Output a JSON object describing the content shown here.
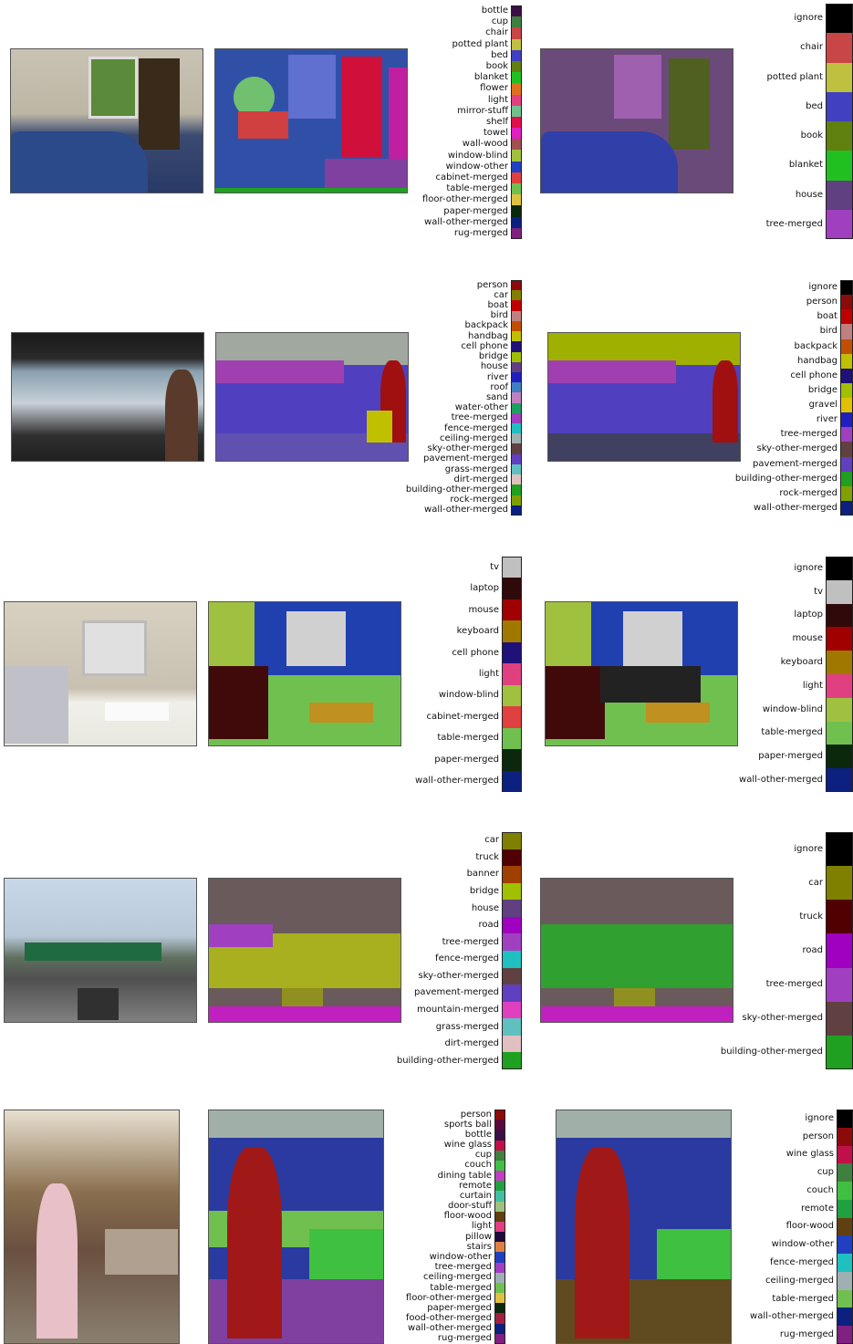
{
  "rows": [
    {
      "legend_mid": [
        {
          "label": "bottle",
          "color": "#3b0f45"
        },
        {
          "label": "cup",
          "color": "#3f7f3f"
        },
        {
          "label": "chair",
          "color": "#c84646"
        },
        {
          "label": "potted plant",
          "color": "#c0c040"
        },
        {
          "label": "bed",
          "color": "#4040c0"
        },
        {
          "label": "book",
          "color": "#608010"
        },
        {
          "label": "blanket",
          "color": "#20c020"
        },
        {
          "label": "flower",
          "color": "#e07020"
        },
        {
          "label": "light",
          "color": "#e04080"
        },
        {
          "label": "mirror-stuff",
          "color": "#70c090"
        },
        {
          "label": "shelf",
          "color": "#e0104a"
        },
        {
          "label": "towel",
          "color": "#e020c0"
        },
        {
          "label": "wall-wood",
          "color": "#a05050"
        },
        {
          "label": "window-blind",
          "color": "#a0c040"
        },
        {
          "label": "window-other",
          "color": "#2040c0"
        },
        {
          "label": "cabinet-merged",
          "color": "#e04040"
        },
        {
          "label": "table-merged",
          "color": "#70c050"
        },
        {
          "label": "floor-other-merged",
          "color": "#e0c040"
        },
        {
          "label": "paper-merged",
          "color": "#0c280c"
        },
        {
          "label": "wall-other-merged",
          "color": "#0c2080"
        },
        {
          "label": "rug-merged",
          "color": "#802080"
        }
      ],
      "legend_right": [
        {
          "label": "ignore",
          "color": "#000000"
        },
        {
          "label": "chair",
          "color": "#c84646"
        },
        {
          "label": "potted plant",
          "color": "#c0c040"
        },
        {
          "label": "bed",
          "color": "#4040c0"
        },
        {
          "label": "book",
          "color": "#608010"
        },
        {
          "label": "blanket",
          "color": "#20c020"
        },
        {
          "label": "house",
          "color": "#604080"
        },
        {
          "label": "tree-merged",
          "color": "#a040c0"
        }
      ]
    },
    {
      "legend_mid": [
        {
          "label": "person",
          "color": "#8c0a0a"
        },
        {
          "label": "car",
          "color": "#808000"
        },
        {
          "label": "boat",
          "color": "#c00000"
        },
        {
          "label": "bird",
          "color": "#c08080"
        },
        {
          "label": "backpack",
          "color": "#c05000"
        },
        {
          "label": "handbag",
          "color": "#c0c000"
        },
        {
          "label": "cell phone",
          "color": "#20107a"
        },
        {
          "label": "bridge",
          "color": "#a0c000"
        },
        {
          "label": "house",
          "color": "#604080"
        },
        {
          "label": "river",
          "color": "#2020c0"
        },
        {
          "label": "roof",
          "color": "#4080c0"
        },
        {
          "label": "sand",
          "color": "#c080c0"
        },
        {
          "label": "water-other",
          "color": "#20a060"
        },
        {
          "label": "tree-merged",
          "color": "#a040c0"
        },
        {
          "label": "fence-merged",
          "color": "#20c0c0"
        },
        {
          "label": "ceiling-merged",
          "color": "#a0b0b0"
        },
        {
          "label": "sky-other-merged",
          "color": "#604040"
        },
        {
          "label": "pavement-merged",
          "color": "#6040c0"
        },
        {
          "label": "grass-merged",
          "color": "#60c0c0"
        },
        {
          "label": "dirt-merged",
          "color": "#e0c0c0"
        },
        {
          "label": "building-other-merged",
          "color": "#20a020"
        },
        {
          "label": "rock-merged",
          "color": "#80a000"
        },
        {
          "label": "wall-other-merged",
          "color": "#0c2080"
        }
      ],
      "legend_right": [
        {
          "label": "ignore",
          "color": "#000000"
        },
        {
          "label": "person",
          "color": "#8c0a0a"
        },
        {
          "label": "boat",
          "color": "#c00000"
        },
        {
          "label": "bird",
          "color": "#c08080"
        },
        {
          "label": "backpack",
          "color": "#c05000"
        },
        {
          "label": "handbag",
          "color": "#c0c000"
        },
        {
          "label": "cell phone",
          "color": "#20107a"
        },
        {
          "label": "bridge",
          "color": "#a0c000"
        },
        {
          "label": "gravel",
          "color": "#e0c000"
        },
        {
          "label": "river",
          "color": "#2020c0"
        },
        {
          "label": "tree-merged",
          "color": "#a040c0"
        },
        {
          "label": "sky-other-merged",
          "color": "#604040"
        },
        {
          "label": "pavement-merged",
          "color": "#6040c0"
        },
        {
          "label": "building-other-merged",
          "color": "#20a020"
        },
        {
          "label": "rock-merged",
          "color": "#80a000"
        },
        {
          "label": "wall-other-merged",
          "color": "#0c2080"
        }
      ]
    },
    {
      "legend_mid": [
        {
          "label": "tv",
          "color": "#c0c0c0"
        },
        {
          "label": "laptop",
          "color": "#300a0a"
        },
        {
          "label": "mouse",
          "color": "#a00000"
        },
        {
          "label": "keyboard",
          "color": "#a07800"
        },
        {
          "label": "cell phone",
          "color": "#20107a"
        },
        {
          "label": "light",
          "color": "#e04080"
        },
        {
          "label": "window-blind",
          "color": "#a0c040"
        },
        {
          "label": "cabinet-merged",
          "color": "#e04040"
        },
        {
          "label": "table-merged",
          "color": "#70c050"
        },
        {
          "label": "paper-merged",
          "color": "#0c280c"
        },
        {
          "label": "wall-other-merged",
          "color": "#0c2080"
        }
      ],
      "legend_right": [
        {
          "label": "ignore",
          "color": "#000000"
        },
        {
          "label": "tv",
          "color": "#c0c0c0"
        },
        {
          "label": "laptop",
          "color": "#300a0a"
        },
        {
          "label": "mouse",
          "color": "#a00000"
        },
        {
          "label": "keyboard",
          "color": "#a07800"
        },
        {
          "label": "light",
          "color": "#e04080"
        },
        {
          "label": "window-blind",
          "color": "#a0c040"
        },
        {
          "label": "table-merged",
          "color": "#70c050"
        },
        {
          "label": "paper-merged",
          "color": "#0c280c"
        },
        {
          "label": "wall-other-merged",
          "color": "#0c2080"
        }
      ]
    },
    {
      "legend_mid": [
        {
          "label": "car",
          "color": "#808000"
        },
        {
          "label": "truck",
          "color": "#500000"
        },
        {
          "label": "banner",
          "color": "#a04000"
        },
        {
          "label": "bridge",
          "color": "#a0c000"
        },
        {
          "label": "house",
          "color": "#604080"
        },
        {
          "label": "road",
          "color": "#a000c0"
        },
        {
          "label": "tree-merged",
          "color": "#a040c0"
        },
        {
          "label": "fence-merged",
          "color": "#20c0c0"
        },
        {
          "label": "sky-other-merged",
          "color": "#604040"
        },
        {
          "label": "pavement-merged",
          "color": "#6040c0"
        },
        {
          "label": "mountain-merged",
          "color": "#e040c0"
        },
        {
          "label": "grass-merged",
          "color": "#60c0c0"
        },
        {
          "label": "dirt-merged",
          "color": "#e0c0c0"
        },
        {
          "label": "building-other-merged",
          "color": "#20a020"
        }
      ],
      "legend_right": [
        {
          "label": "ignore",
          "color": "#000000"
        },
        {
          "label": "car",
          "color": "#808000"
        },
        {
          "label": "truck",
          "color": "#500000"
        },
        {
          "label": "road",
          "color": "#a000c0"
        },
        {
          "label": "tree-merged",
          "color": "#a040c0"
        },
        {
          "label": "sky-other-merged",
          "color": "#604040"
        },
        {
          "label": "building-other-merged",
          "color": "#20a020"
        }
      ]
    },
    {
      "legend_mid": [
        {
          "label": "person",
          "color": "#8c0a0a"
        },
        {
          "label": "sports ball",
          "color": "#5a0a3a"
        },
        {
          "label": "bottle",
          "color": "#3b0f45"
        },
        {
          "label": "wine glass",
          "color": "#c0104a"
        },
        {
          "label": "cup",
          "color": "#3f7f3f"
        },
        {
          "label": "couch",
          "color": "#40c040"
        },
        {
          "label": "dining table",
          "color": "#c040c0"
        },
        {
          "label": "remote",
          "color": "#20a040"
        },
        {
          "label": "curtain",
          "color": "#40c0a0"
        },
        {
          "label": "door-stuff",
          "color": "#a0c080"
        },
        {
          "label": "floor-wood",
          "color": "#604010"
        },
        {
          "label": "light",
          "color": "#e04080"
        },
        {
          "label": "pillow",
          "color": "#200a3a"
        },
        {
          "label": "stairs",
          "color": "#e08040"
        },
        {
          "label": "window-other",
          "color": "#2040c0"
        },
        {
          "label": "tree-merged",
          "color": "#a040c0"
        },
        {
          "label": "ceiling-merged",
          "color": "#a0b0b0"
        },
        {
          "label": "table-merged",
          "color": "#70c050"
        },
        {
          "label": "floor-other-merged",
          "color": "#e0c040"
        },
        {
          "label": "paper-merged",
          "color": "#0c280c"
        },
        {
          "label": "food-other-merged",
          "color": "#a02040"
        },
        {
          "label": "wall-other-merged",
          "color": "#0c2080"
        },
        {
          "label": "rug-merged",
          "color": "#802080"
        }
      ],
      "legend_right": [
        {
          "label": "ignore",
          "color": "#000000"
        },
        {
          "label": "person",
          "color": "#8c0a0a"
        },
        {
          "label": "wine glass",
          "color": "#c0104a"
        },
        {
          "label": "cup",
          "color": "#3f7f3f"
        },
        {
          "label": "couch",
          "color": "#40c040"
        },
        {
          "label": "remote",
          "color": "#20a040"
        },
        {
          "label": "floor-wood",
          "color": "#604010"
        },
        {
          "label": "window-other",
          "color": "#2040c0"
        },
        {
          "label": "fence-merged",
          "color": "#20c0c0"
        },
        {
          "label": "ceiling-merged",
          "color": "#a0b0b0"
        },
        {
          "label": "table-merged",
          "color": "#70c050"
        },
        {
          "label": "wall-other-merged",
          "color": "#0c2080"
        },
        {
          "label": "rug-merged",
          "color": "#802080"
        }
      ]
    }
  ]
}
